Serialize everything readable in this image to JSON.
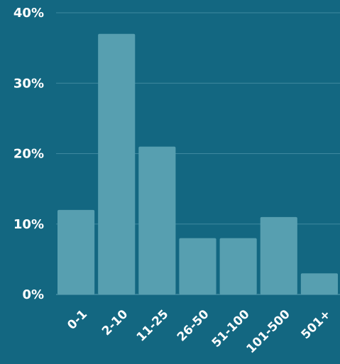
{
  "chart_data": {
    "type": "bar",
    "title": "",
    "xlabel": "",
    "ylabel": "",
    "categories": [
      "0-1",
      "2-10",
      "11-25",
      "26-50",
      "51-100",
      "101-500",
      "501+"
    ],
    "values": [
      12,
      37,
      21,
      8,
      8,
      11,
      3
    ],
    "ylim": [
      0,
      40
    ],
    "yticks": [
      0,
      10,
      20,
      30,
      40
    ],
    "ytick_labels": [
      "0%",
      "10%",
      "20%",
      "30%",
      "40%"
    ],
    "grid": true,
    "legend": "none",
    "colors": {
      "background": "#136781",
      "bar": "#579fb0",
      "grid": "#3f89a0",
      "text": "#ffffff"
    }
  }
}
